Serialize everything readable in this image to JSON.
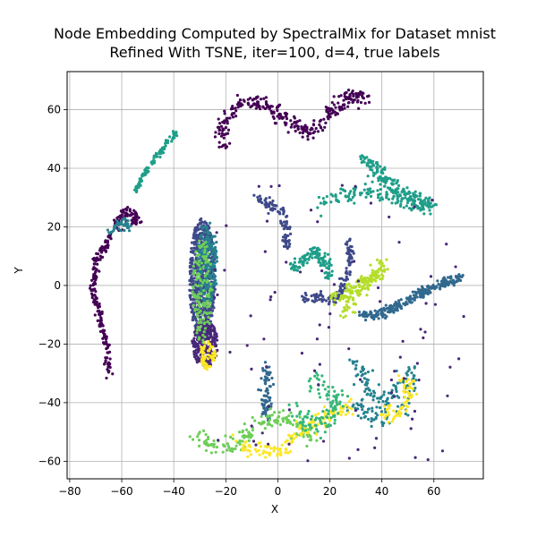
{
  "chart_data": {
    "type": "scatter",
    "title": "Node Embedding Computed by SpectralMix for Dataset mnist",
    "subtitle": "Refined With TSNE, iter=100, d=4, true labels",
    "xlabel": "X",
    "ylabel": "Y",
    "xlim": [
      -81,
      79
    ],
    "ylim": [
      -66,
      73
    ],
    "xticks": [
      -80,
      -60,
      -40,
      -20,
      0,
      20,
      40,
      60
    ],
    "yticks": [
      -60,
      -40,
      -20,
      0,
      20,
      40,
      60
    ],
    "grid": true,
    "colors": [
      "#440154",
      "#482878",
      "#3e4989",
      "#31688e",
      "#26828e",
      "#1f9e89",
      "#35b779",
      "#6ece58",
      "#b5de2b",
      "#fde725"
    ],
    "clusters": [
      {
        "color_index": 0,
        "shape": "curve",
        "spread": 0.7,
        "count": 170,
        "path": [
          [
            -65,
            -30
          ],
          [
            -66,
            -20
          ],
          [
            -68,
            -12
          ],
          [
            -70,
            -5
          ],
          [
            -71,
            0
          ],
          [
            -70,
            8
          ],
          [
            -66,
            14
          ],
          [
            -64,
            17
          ]
        ]
      },
      {
        "color_index": 0,
        "shape": "curve",
        "spread": 0.9,
        "count": 80,
        "path": [
          [
            -62,
            20
          ],
          [
            -60,
            23
          ],
          [
            -57,
            25
          ],
          [
            -55,
            24
          ],
          [
            -54,
            21
          ]
        ]
      },
      {
        "color_index": 4,
        "shape": "curve",
        "spread": 0.8,
        "count": 40,
        "path": [
          [
            -64,
            18
          ],
          [
            -62,
            21
          ],
          [
            -60,
            22
          ],
          [
            -57,
            20
          ]
        ]
      },
      {
        "color_index": 5,
        "shape": "curve",
        "spread": 0.5,
        "count": 90,
        "path": [
          [
            -55,
            32
          ],
          [
            -52,
            37
          ],
          [
            -48,
            42
          ],
          [
            -44,
            47
          ],
          [
            -40,
            51
          ],
          [
            -39,
            53
          ]
        ]
      },
      {
        "color_index": 0,
        "shape": "curve",
        "spread": 1.4,
        "count": 300,
        "path": [
          [
            -20,
            47
          ],
          [
            -22,
            53
          ],
          [
            -19,
            58
          ],
          [
            -14,
            62
          ],
          [
            -8,
            63
          ],
          [
            -4,
            61
          ],
          [
            0,
            59
          ],
          [
            5,
            55
          ],
          [
            10,
            53
          ],
          [
            14,
            53
          ],
          [
            18,
            57
          ],
          [
            22,
            61
          ],
          [
            27,
            64
          ],
          [
            31,
            65
          ],
          [
            33,
            64
          ]
        ]
      },
      {
        "color_index": 5,
        "shape": "curve",
        "spread": 1.4,
        "count": 170,
        "path": [
          [
            32,
            44
          ],
          [
            37,
            40
          ],
          [
            42,
            35
          ],
          [
            46,
            32
          ],
          [
            52,
            30
          ],
          [
            58,
            28
          ],
          [
            60,
            27
          ]
        ]
      },
      {
        "color_index": 5,
        "shape": "curve",
        "spread": 1.2,
        "count": 130,
        "path": [
          [
            17,
            28
          ],
          [
            22,
            30
          ],
          [
            28,
            31
          ],
          [
            34,
            32
          ],
          [
            40,
            31
          ],
          [
            46,
            29
          ],
          [
            52,
            28
          ],
          [
            58,
            27
          ]
        ]
      },
      {
        "color_index": 2,
        "shape": "blob",
        "center": [
          -29,
          2
        ],
        "rx": 5,
        "ry": 21,
        "count": 650
      },
      {
        "color_index": 1,
        "shape": "blob",
        "center": [
          -28,
          -20
        ],
        "rx": 5,
        "ry": 8,
        "count": 260
      },
      {
        "color_index": 4,
        "shape": "blob",
        "center": [
          -27,
          8
        ],
        "rx": 4,
        "ry": 14,
        "count": 200
      },
      {
        "color_index": 7,
        "shape": "blob",
        "center": [
          -29,
          -2
        ],
        "rx": 4,
        "ry": 18,
        "count": 140
      },
      {
        "color_index": 9,
        "shape": "blob",
        "center": [
          -27,
          -24
        ],
        "rx": 3,
        "ry": 5,
        "count": 60
      },
      {
        "color_index": 2,
        "shape": "curve",
        "spread": 0.9,
        "count": 90,
        "path": [
          [
            -8,
            30
          ],
          [
            -3,
            27
          ],
          [
            2,
            25
          ],
          [
            4,
            20
          ],
          [
            3,
            14
          ]
        ]
      },
      {
        "color_index": 5,
        "shape": "curve",
        "spread": 1.0,
        "count": 120,
        "path": [
          [
            6,
            6
          ],
          [
            10,
            9
          ],
          [
            14,
            12
          ],
          [
            18,
            8
          ],
          [
            20,
            3
          ]
        ]
      },
      {
        "color_index": 2,
        "shape": "curve",
        "spread": 0.8,
        "count": 130,
        "path": [
          [
            10,
            -5
          ],
          [
            16,
            -4
          ],
          [
            22,
            -5
          ],
          [
            24,
            -3
          ],
          [
            26,
            3
          ],
          [
            28,
            10
          ],
          [
            27,
            15
          ]
        ]
      },
      {
        "color_index": 8,
        "shape": "curve",
        "spread": 1.3,
        "count": 170,
        "path": [
          [
            20,
            -5
          ],
          [
            26,
            -3
          ],
          [
            32,
            0
          ],
          [
            38,
            4
          ],
          [
            40,
            7
          ],
          [
            24,
            -10
          ]
        ]
      },
      {
        "color_index": 3,
        "shape": "curve",
        "spread": 0.8,
        "count": 260,
        "path": [
          [
            32,
            -10
          ],
          [
            38,
            -10
          ],
          [
            44,
            -8
          ],
          [
            50,
            -5
          ],
          [
            56,
            -2
          ],
          [
            62,
            0
          ],
          [
            68,
            2
          ],
          [
            71,
            3
          ]
        ]
      },
      {
        "color_index": 3,
        "shape": "curve",
        "spread": 1.2,
        "count": 70,
        "path": [
          [
            -4,
            -28
          ],
          [
            -4,
            -36
          ],
          [
            -5,
            -42
          ],
          [
            -5,
            -46
          ]
        ]
      },
      {
        "color_index": 4,
        "shape": "curve",
        "spread": 1.6,
        "count": 170,
        "path": [
          [
            28,
            -25
          ],
          [
            32,
            -30
          ],
          [
            36,
            -36
          ],
          [
            40,
            -40
          ],
          [
            44,
            -36
          ],
          [
            48,
            -32
          ],
          [
            52,
            -30
          ],
          [
            50,
            -40
          ],
          [
            46,
            -44
          ],
          [
            40,
            -46
          ],
          [
            34,
            -44
          ],
          [
            30,
            -40
          ]
        ]
      },
      {
        "color_index": 7,
        "shape": "curve",
        "spread": 1.5,
        "count": 170,
        "path": [
          [
            -30,
            -52
          ],
          [
            -25,
            -55
          ],
          [
            -20,
            -55
          ],
          [
            -15,
            -54
          ],
          [
            -10,
            -50
          ],
          [
            -7,
            -47
          ],
          [
            -3,
            -46
          ],
          [
            2,
            -45
          ],
          [
            6,
            -47
          ],
          [
            10,
            -50
          ],
          [
            14,
            -52
          ]
        ]
      },
      {
        "color_index": 9,
        "shape": "curve",
        "spread": 1.4,
        "count": 140,
        "path": [
          [
            -18,
            -52
          ],
          [
            -12,
            -55
          ],
          [
            -5,
            -57
          ],
          [
            0,
            -57
          ],
          [
            5,
            -53
          ],
          [
            10,
            -49
          ],
          [
            16,
            -46
          ],
          [
            22,
            -43
          ],
          [
            28,
            -42
          ]
        ]
      },
      {
        "color_index": 6,
        "shape": "curve",
        "spread": 1.7,
        "count": 110,
        "path": [
          [
            5,
            -42
          ],
          [
            10,
            -45
          ],
          [
            14,
            -48
          ],
          [
            20,
            -45
          ],
          [
            24,
            -40
          ],
          [
            14,
            -34
          ],
          [
            16,
            -30
          ]
        ]
      },
      {
        "color_index": 9,
        "shape": "curve",
        "spread": 1.5,
        "count": 60,
        "path": [
          [
            40,
            -42
          ],
          [
            44,
            -45
          ],
          [
            50,
            -40
          ],
          [
            52,
            -34
          ],
          [
            46,
            -30
          ]
        ]
      },
      {
        "color_index": 1,
        "shape": "scatter",
        "bounds": [
          -25,
          75,
          -60,
          35
        ],
        "count": 90
      }
    ]
  }
}
